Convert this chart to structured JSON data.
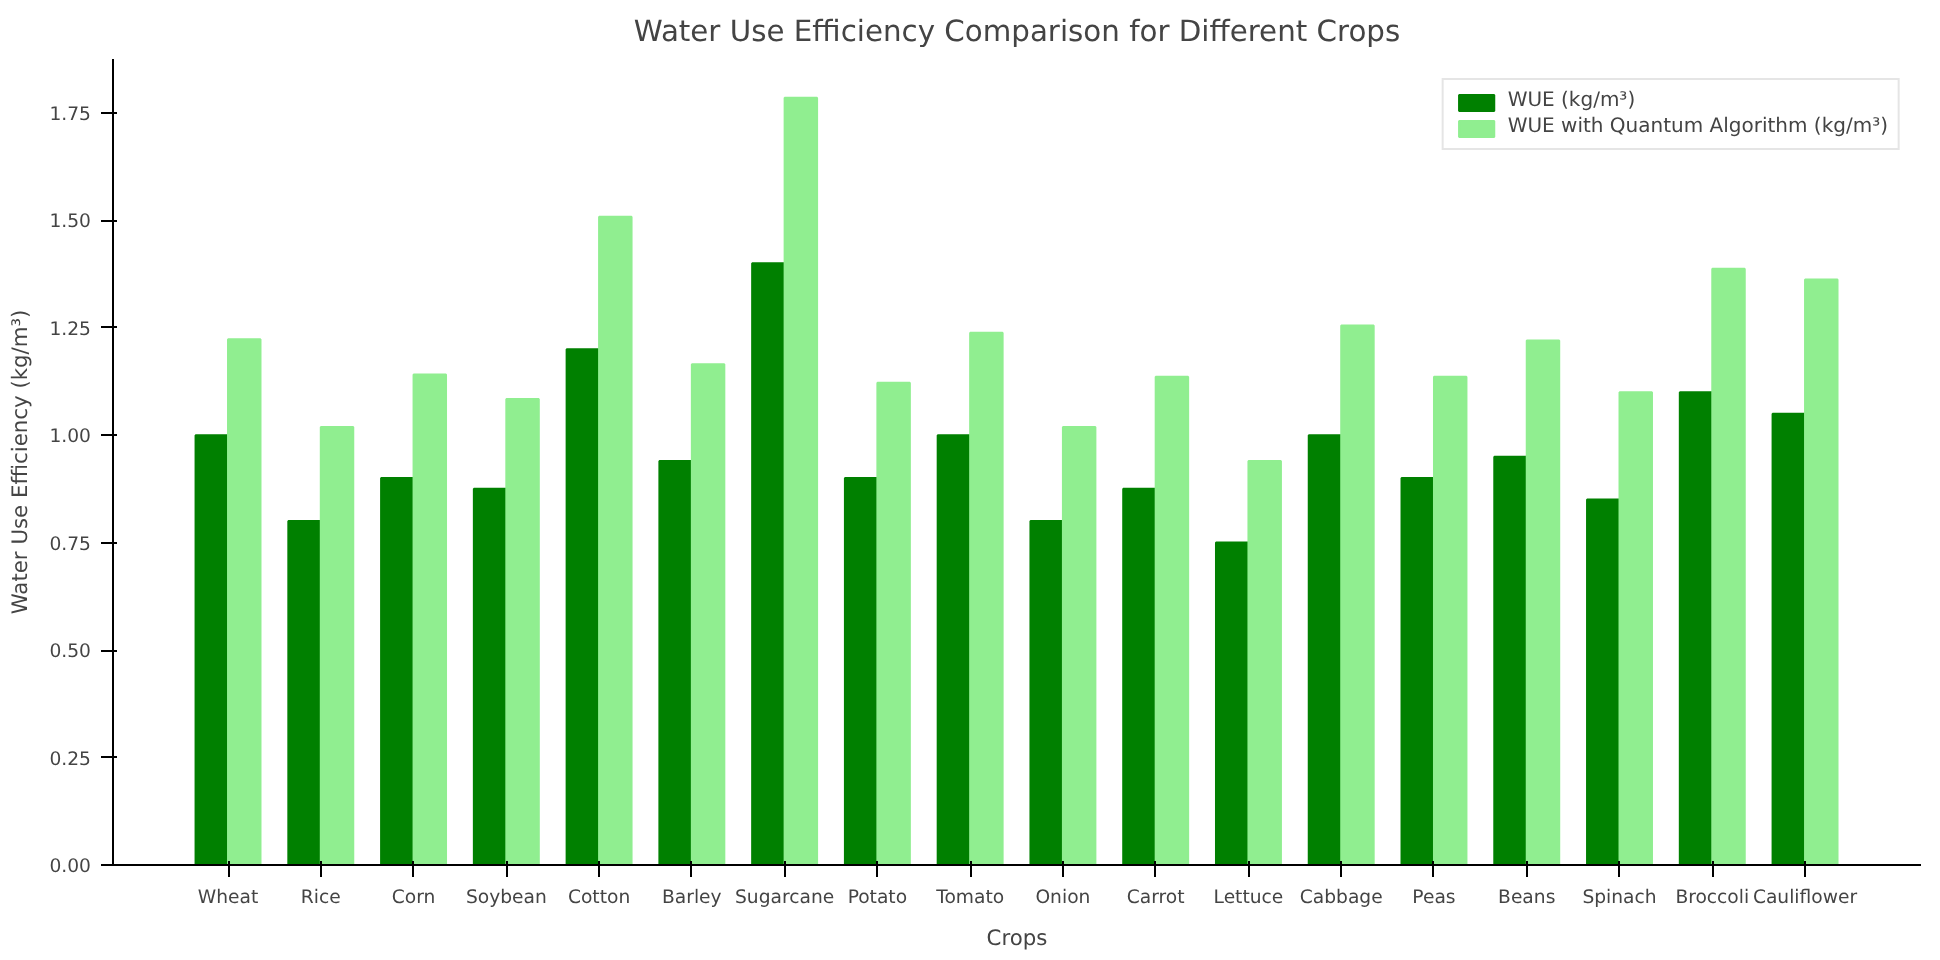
{
  "chart_data": {
    "type": "bar",
    "title": "Water Use Efficiency Comparison for Different Crops",
    "xlabel": "Crops",
    "ylabel": "Water Use Efficiency (kg/m³)",
    "categories": [
      "Wheat",
      "Rice",
      "Corn",
      "Soybean",
      "Cotton",
      "Barley",
      "Sugarcane",
      "Potato",
      "Tomato",
      "Onion",
      "Carrot",
      "Lettuce",
      "Cabbage",
      "Peas",
      "Beans",
      "Spinach",
      "Broccoli",
      "Cauliflower"
    ],
    "series": [
      {
        "name": "WUE (kg/m³)",
        "color": "#008000",
        "values": [
          1.0,
          0.8,
          0.9,
          0.875,
          1.2,
          0.94,
          1.4,
          0.9,
          1.0,
          0.8,
          0.875,
          0.75,
          1.0,
          0.9,
          0.95,
          0.85,
          1.1,
          1.05
        ]
      },
      {
        "name": "WUE with Quantum Algorithm (kg/m³)",
        "color": "#90ee90",
        "values": [
          1.223,
          1.019,
          1.141,
          1.084,
          1.508,
          1.165,
          1.785,
          1.122,
          1.238,
          1.019,
          1.136,
          0.94,
          1.255,
          1.136,
          1.22,
          1.1,
          1.387,
          1.362
        ]
      }
    ],
    "ylim": [
      0,
      1.875
    ],
    "yticks": [
      {
        "value": 0,
        "label": "0.00"
      },
      {
        "value": 0.25,
        "label": "0.25"
      },
      {
        "value": 0.5,
        "label": "0.50"
      },
      {
        "value": 0.75,
        "label": "0.75"
      },
      {
        "value": 1.0,
        "label": "1.00"
      },
      {
        "value": 1.25,
        "label": "1.25"
      },
      {
        "value": 1.5,
        "label": "1.50"
      },
      {
        "value": 1.75,
        "label": "1.75"
      }
    ],
    "grid": false,
    "legend": "top right"
  }
}
